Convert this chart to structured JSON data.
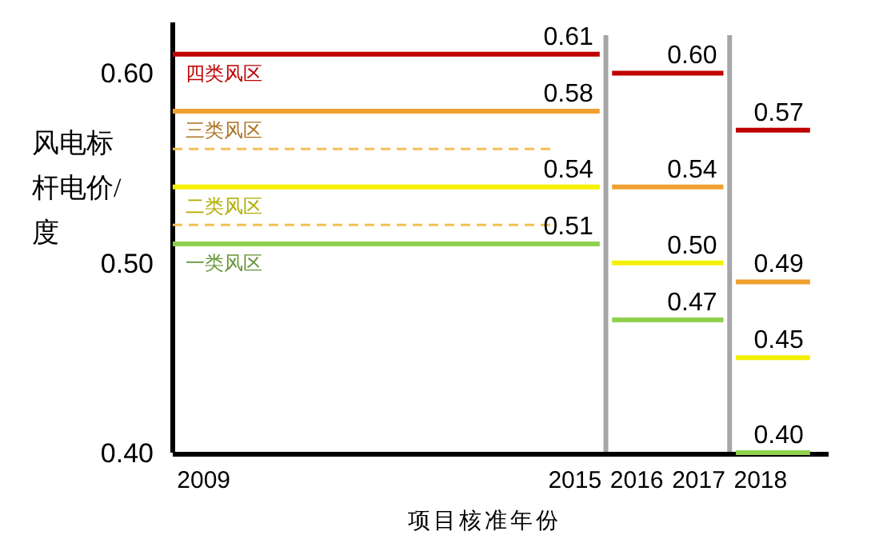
{
  "chart_data": {
    "type": "line",
    "ylabel": "风电标杆电价/度",
    "xlabel": "项目核准年份",
    "xlim": [
      2008.5,
      2019.1
    ],
    "xticks": [
      2009,
      2015,
      2016,
      2017,
      2018
    ],
    "ylim": [
      0.4,
      0.62
    ],
    "yticks": [
      {
        "value": 0.4,
        "label": "0.40"
      },
      {
        "value": 0.5,
        "label": "0.50"
      },
      {
        "value": 0.6,
        "label": "0.60"
      }
    ],
    "grid": false,
    "line_style": "solid",
    "marker": "none",
    "series": [
      {
        "name": "四类风区",
        "color": "#c00000",
        "x": [
          2008.5,
          2015.4
        ],
        "values": [
          0.61,
          0.61
        ],
        "value_labels": [
          null,
          "0.61"
        ]
      },
      {
        "color": "#c00000",
        "x": [
          2015.6,
          2017.4
        ],
        "values": [
          0.6,
          0.6
        ],
        "value_labels": [
          null,
          "0.60"
        ]
      },
      {
        "color": "#c00000",
        "x": [
          2017.6,
          2018.8
        ],
        "values": [
          0.57,
          0.57
        ],
        "value_labels": [
          null,
          "0.57"
        ]
      },
      {
        "name": "三类风区",
        "color": "#f0a030",
        "x": [
          2008.5,
          2015.4
        ],
        "values": [
          0.58,
          0.58
        ],
        "value_labels": [
          null,
          "0.58"
        ]
      },
      {
        "color": "#f0a030",
        "x": [
          2015.6,
          2017.4
        ],
        "values": [
          0.54,
          0.54
        ],
        "value_labels": [
          null,
          "0.54"
        ]
      },
      {
        "color": "#f0a030",
        "x": [
          2017.6,
          2018.8
        ],
        "values": [
          0.49,
          0.49
        ],
        "value_labels": [
          null,
          "0.49"
        ]
      },
      {
        "color": "#f5c050",
        "line_style": "dashed",
        "x": [
          2008.5,
          2014.6
        ],
        "values": [
          0.56,
          0.56
        ]
      },
      {
        "name": "二类风区",
        "color": "#f5f000",
        "x": [
          2008.5,
          2015.4
        ],
        "values": [
          0.54,
          0.54
        ],
        "value_labels": [
          null,
          "0.54"
        ]
      },
      {
        "color": "#f5f000",
        "x": [
          2015.6,
          2017.4
        ],
        "values": [
          0.5,
          0.5
        ],
        "value_labels": [
          null,
          "0.50"
        ]
      },
      {
        "color": "#f5f000",
        "x": [
          2017.6,
          2018.8
        ],
        "values": [
          0.45,
          0.45
        ],
        "value_labels": [
          null,
          "0.45"
        ]
      },
      {
        "color": "#f5c050",
        "line_style": "dashed",
        "x": [
          2008.5,
          2014.6
        ],
        "values": [
          0.52,
          0.52
        ]
      },
      {
        "name": "一类风区",
        "color": "#8fd14f",
        "x": [
          2008.5,
          2015.4
        ],
        "values": [
          0.51,
          0.51
        ],
        "value_labels": [
          null,
          "0.51"
        ]
      },
      {
        "color": "#8fd14f",
        "x": [
          2015.6,
          2017.4
        ],
        "values": [
          0.47,
          0.47
        ],
        "value_labels": [
          null,
          "0.47"
        ]
      },
      {
        "color": "#8fd14f",
        "x": [
          2017.6,
          2018.8
        ],
        "values": [
          0.4,
          0.4
        ],
        "value_labels": [
          null,
          "0.40"
        ]
      }
    ],
    "ref_lines": [
      {
        "axis": "x",
        "value": 2015.5,
        "color": "#a6a6a6"
      },
      {
        "axis": "x",
        "value": 2017.5,
        "color": "#a6a6a6"
      }
    ]
  }
}
